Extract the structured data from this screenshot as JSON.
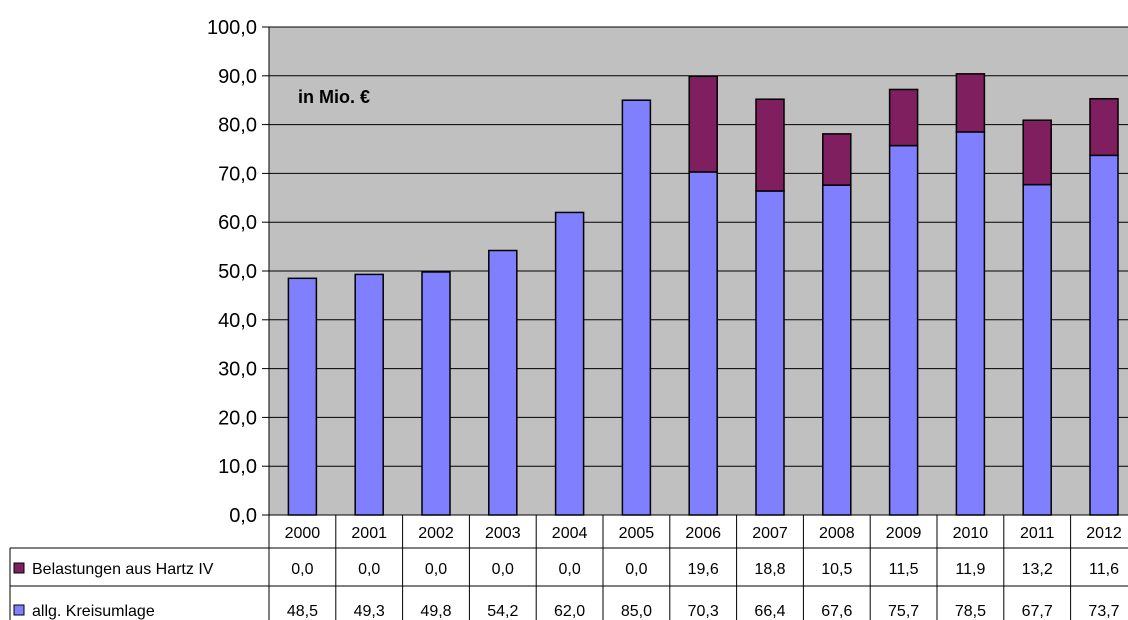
{
  "chart_data": {
    "type": "bar",
    "stacked": true,
    "annotation": "in Mio. €",
    "categories": [
      "2000",
      "2001",
      "2002",
      "2003",
      "2004",
      "2005",
      "2006",
      "2007",
      "2008",
      "2009",
      "2010",
      "2011",
      "2012"
    ],
    "ylim": [
      0,
      100
    ],
    "y_ticks": [
      "0,0",
      "10,0",
      "20,0",
      "30,0",
      "40,0",
      "50,0",
      "60,0",
      "70,0",
      "80,0",
      "90,0",
      "100,0"
    ],
    "grid": true,
    "legend": "data-table-left",
    "series": [
      {
        "name": "allg. Kreisumlage",
        "color": "#8080ff",
        "values": [
          48.5,
          49.3,
          49.8,
          54.2,
          62.0,
          85.0,
          70.3,
          66.4,
          67.6,
          75.7,
          78.5,
          67.7,
          73.7
        ],
        "labels": [
          "48,5",
          "49,3",
          "49,8",
          "54,2",
          "62,0",
          "85,0",
          "70,3",
          "66,4",
          "67,6",
          "75,7",
          "78,5",
          "67,7",
          "73,7"
        ]
      },
      {
        "name": "Belastungen aus Hartz IV",
        "color": "#7f1f5f",
        "values": [
          0.0,
          0.0,
          0.0,
          0.0,
          0.0,
          0.0,
          19.6,
          18.8,
          10.5,
          11.5,
          11.9,
          13.2,
          11.6
        ],
        "labels": [
          "0,0",
          "0,0",
          "0,0",
          "0,0",
          "0,0",
          "0,0",
          "19,6",
          "18,8",
          "10,5",
          "11,5",
          "11,9",
          "13,2",
          "11,6"
        ]
      }
    ]
  },
  "colors": {
    "plot_bg": "#c0c0c0",
    "grid": "#000000"
  }
}
